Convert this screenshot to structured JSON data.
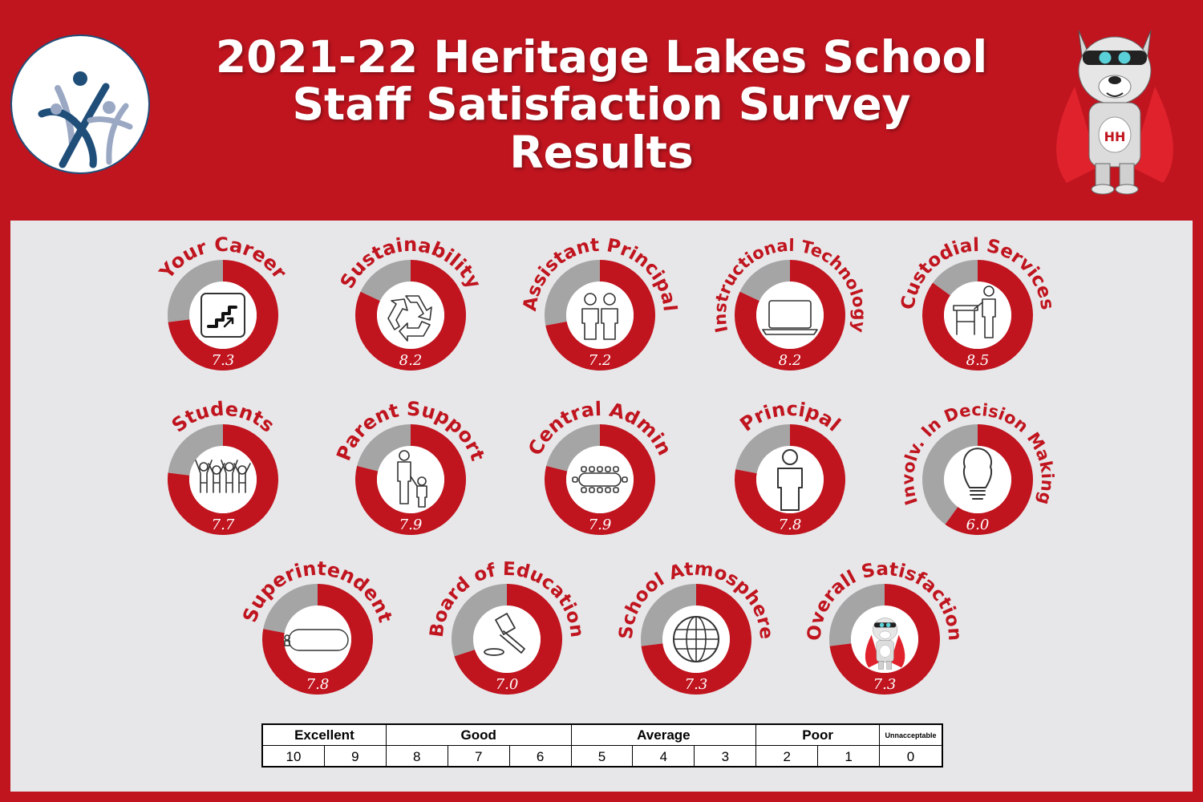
{
  "header": {
    "title_line1": "2021-22 Heritage Lakes School",
    "title_line2": "Staff Satisfaction Survey Results"
  },
  "colors": {
    "brand_red": "#c0141e",
    "ring_gray": "#a5a5a5",
    "panel": "#e7e7e9",
    "logo_navy": "#1f4e79",
    "logo_light": "#9aa8c4"
  },
  "chart_data": {
    "type": "pie",
    "scale_max": 10,
    "items": [
      {
        "label": "Your Career",
        "value": 7.3,
        "icon": "stairs-icon"
      },
      {
        "label": "Sustainability",
        "value": 8.2,
        "icon": "recycle-icon"
      },
      {
        "label": "Assistant Principal",
        "value": 7.2,
        "icon": "two-people-icon"
      },
      {
        "label": "Instructional Technology",
        "value": 8.2,
        "icon": "laptop-icon"
      },
      {
        "label": "Custodial Services",
        "value": 8.5,
        "icon": "custodian-icon"
      },
      {
        "label": "Students",
        "value": 7.7,
        "icon": "students-icon"
      },
      {
        "label": "Parent Support",
        "value": 7.9,
        "icon": "parent-child-icon"
      },
      {
        "label": "Central Admin",
        "value": 7.9,
        "icon": "conference-table-icon"
      },
      {
        "label": "Principal",
        "value": 7.8,
        "icon": "person-icon"
      },
      {
        "label": "Involv. In Decision Making",
        "value": 6.0,
        "icon": "lightbulb-icon"
      },
      {
        "label": "Superintendent",
        "value": 7.8,
        "icon": "meeting-table-icon"
      },
      {
        "label": "Board of Education",
        "value": 7.0,
        "icon": "gavel-icon"
      },
      {
        "label": "School Atmosphere",
        "value": 7.3,
        "icon": "globe-icon"
      },
      {
        "label": "Overall Satisfaction",
        "value": 7.3,
        "icon": "mascot-icon"
      }
    ],
    "scale": {
      "categories": [
        {
          "label": "Excellent",
          "span": 2
        },
        {
          "label": "Good",
          "span": 3
        },
        {
          "label": "Average",
          "span": 3
        },
        {
          "label": "Poor",
          "span": 2
        },
        {
          "label": "Unnacceptable",
          "span": 1
        }
      ],
      "values": [
        "10",
        "9",
        "8",
        "7",
        "6",
        "5",
        "4",
        "3",
        "2",
        "1",
        "0"
      ]
    }
  }
}
